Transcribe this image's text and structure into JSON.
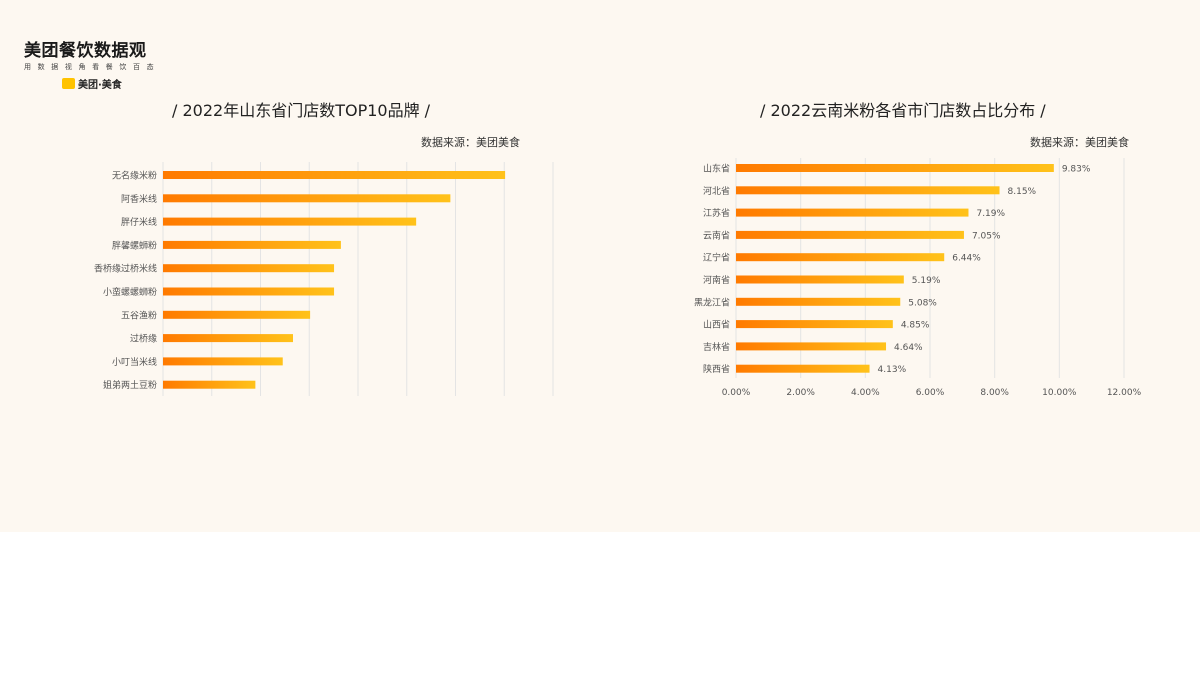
{
  "logo": {
    "title": "美团餐饮数据观",
    "subtitle": "用 数 据 视 角 看 餐 饮 百 态",
    "brand": "美团·美食"
  },
  "colors": {
    "bar_start": "#ff7a00",
    "bar_end": "#ffc21a",
    "grid": "#e4e4e4",
    "background": "#fdf8f1"
  },
  "chart_data": [
    {
      "type": "bar",
      "orientation": "horizontal",
      "title": "/  2022年山东省门店数TOP10品牌  /",
      "source": "数据来源：美团美食",
      "categories": [
        "无名缘米粉",
        "阿香米线",
        "胖仔米线",
        "胖馨螺蛳粉",
        "香桥缘过桥米线",
        "小蛮螺螺蛳粉",
        "五谷渔粉",
        "过桥缘",
        "小叮当米线",
        "姐弟两土豆粉"
      ],
      "values": [
        100,
        84,
        74,
        52,
        50,
        50,
        43,
        38,
        35,
        27
      ],
      "xlim": [
        0,
        114
      ],
      "x_ticks": [],
      "grid": true,
      "data_labels": false
    },
    {
      "type": "bar",
      "orientation": "horizontal",
      "title": "/ 2022云南米粉各省市门店数占比分布  /",
      "source": "数据来源：美团美食",
      "categories": [
        "山东省",
        "河北省",
        "江苏省",
        "云南省",
        "辽宁省",
        "河南省",
        "黑龙江省",
        "山西省",
        "吉林省",
        "陕西省"
      ],
      "values": [
        9.83,
        8.15,
        7.19,
        7.05,
        6.44,
        5.19,
        5.08,
        4.85,
        4.64,
        4.13
      ],
      "value_labels": [
        "9.83%",
        "8.15%",
        "7.19%",
        "7.05%",
        "6.44%",
        "5.19%",
        "5.08%",
        "4.85%",
        "4.64%",
        "4.13%"
      ],
      "xlim": [
        0,
        12
      ],
      "x_ticks": [
        "0.00%",
        "2.00%",
        "4.00%",
        "6.00%",
        "8.00%",
        "10.00%",
        "12.00%"
      ],
      "grid": true,
      "data_labels": true
    }
  ]
}
